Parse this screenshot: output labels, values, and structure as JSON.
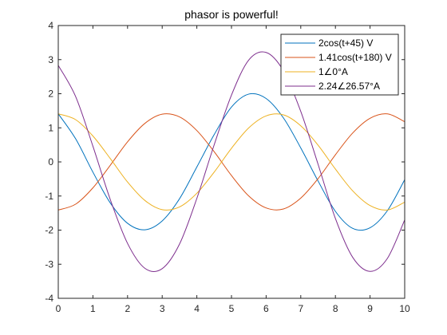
{
  "chart_data": {
    "type": "line",
    "title": "phasor is powerful!",
    "xlabel": "",
    "ylabel": "",
    "xlim": [
      0,
      10
    ],
    "ylim": [
      -4,
      4
    ],
    "xticks": [
      "0",
      "1",
      "2",
      "3",
      "4",
      "5",
      "6",
      "7",
      "8",
      "9",
      "10"
    ],
    "yticks": [
      "4",
      "3",
      "2",
      "1",
      "0",
      "-1",
      "-2",
      "-3",
      "-4"
    ],
    "grid": false,
    "legend_position": "top-right",
    "x": [
      0,
      0.5,
      1,
      1.5,
      2,
      2.5,
      3,
      3.5,
      4,
      4.5,
      5,
      5.5,
      6,
      6.5,
      7,
      7.5,
      8,
      8.5,
      9,
      9.5,
      10
    ],
    "series": [
      {
        "name": "2cos(t+45) V",
        "color": "#0072BD",
        "values": [
          1.41,
          0.68,
          -0.3,
          -1.2,
          -1.8,
          -1.99,
          -1.73,
          -1.08,
          -0.15,
          0.8,
          1.61,
          1.99,
          1.86,
          1.29,
          0.41,
          -0.56,
          -1.45,
          -1.95,
          -1.93,
          -1.43,
          -0.52
        ]
      },
      {
        "name": "1.41cos(t+180) V",
        "color": "#D95319",
        "values": [
          -1.41,
          -1.24,
          -0.76,
          -0.1,
          0.59,
          1.13,
          1.4,
          1.32,
          0.92,
          0.3,
          -0.4,
          -1.0,
          -1.35,
          -1.38,
          -1.06,
          -0.49,
          0.21,
          0.85,
          1.28,
          1.41,
          1.18
        ]
      },
      {
        "name": "1∠0°A",
        "color": "#EDB120",
        "values": [
          1.41,
          1.24,
          0.76,
          0.1,
          -0.59,
          -1.13,
          -1.4,
          -1.32,
          -0.92,
          -0.3,
          0.4,
          1.0,
          1.35,
          1.38,
          1.06,
          0.49,
          -0.21,
          -0.85,
          -1.28,
          -1.41,
          -1.18
        ]
      },
      {
        "name": "2.24∠26.57°A",
        "color": "#7E2F8E",
        "values": [
          2.83,
          1.92,
          0.46,
          -1.1,
          -2.39,
          -3.12,
          -3.13,
          -2.41,
          -1.07,
          0.5,
          1.96,
          2.99,
          3.21,
          2.67,
          1.48,
          -0.07,
          -1.66,
          -2.8,
          -3.21,
          -2.83,
          -1.7
        ]
      }
    ]
  }
}
